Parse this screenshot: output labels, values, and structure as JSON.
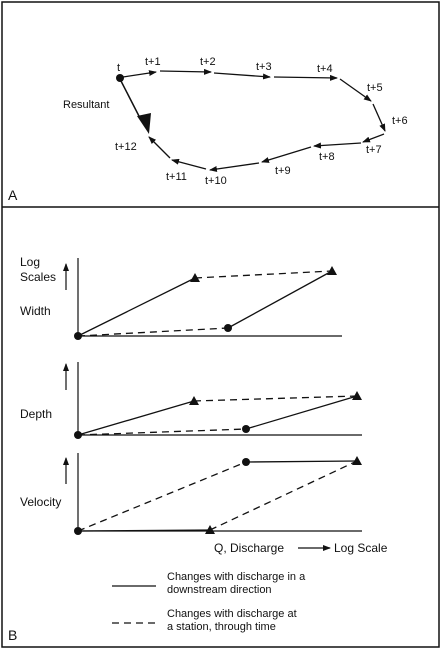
{
  "panel_a": {
    "letter": "A",
    "start_label": "t",
    "resultant_label": "Resultant",
    "time_labels": [
      "t+1",
      "t+2",
      "t+3",
      "t+4",
      "t+5",
      "t+6",
      "t+7",
      "t+8",
      "t+9",
      "t+10",
      "t+11",
      "t+12"
    ]
  },
  "panel_b": {
    "letter": "B",
    "axis_note": "Log\nScales",
    "rows": [
      {
        "label": "Width"
      },
      {
        "label": "Depth"
      },
      {
        "label": "Velocity"
      }
    ],
    "x_axis_label": "Q, Discharge",
    "x_axis_scale": "Log Scale",
    "legend": [
      {
        "style": "solid",
        "text": "Changes with discharge in a\ndownstream direction"
      },
      {
        "style": "dashed",
        "text": "Changes with discharge at\na station, through time"
      }
    ]
  },
  "colors": {
    "ink": "#111111",
    "background": "#ffffff"
  }
}
